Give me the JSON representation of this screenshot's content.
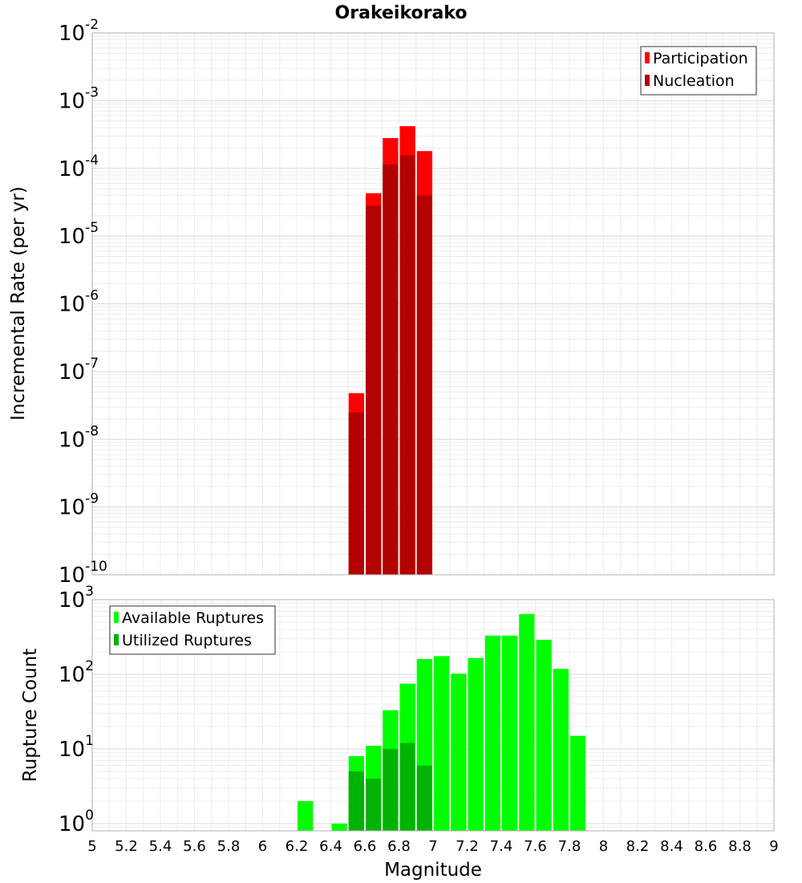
{
  "title": "Orakeikorako",
  "chart_data": [
    {
      "type": "bar",
      "ylabel": "Incremental Rate (per yr)",
      "yscale": "log",
      "ylim": [
        1e-10,
        0.01
      ],
      "xlim": [
        5,
        9
      ],
      "bin_width": 0.1,
      "grid": true,
      "legend_position": "top-right",
      "x": [
        6.55,
        6.65,
        6.75,
        6.85,
        6.95
      ],
      "series": [
        {
          "name": "Participation",
          "color": "#ff0000",
          "values": [
            4.8e-08,
            4.3e-05,
            0.00028,
            0.00042,
            0.00018
          ]
        },
        {
          "name": "Nucleation",
          "color": "#b30000",
          "values": [
            2.5e-08,
            2.8e-05,
            0.000115,
            0.000155,
            4e-05
          ]
        }
      ]
    },
    {
      "type": "bar",
      "xlabel": "Magnitude",
      "ylabel": "Rupture Count",
      "yscale": "log",
      "ylim": [
        0.8,
        1000
      ],
      "xlim": [
        5,
        9
      ],
      "bin_width": 0.1,
      "grid": true,
      "legend_position": "top-left",
      "xticks": [
        "5",
        "5.2",
        "5.4",
        "5.6",
        "5.8",
        "6",
        "6.2",
        "6.4",
        "6.6",
        "6.8",
        "7",
        "7.2",
        "7.4",
        "7.6",
        "7.8",
        "8",
        "8.2",
        "8.4",
        "8.6",
        "8.8",
        "9"
      ],
      "series": [
        {
          "name": "Available Ruptures",
          "color": "#00ff00",
          "x": [
            6.25,
            6.45,
            6.55,
            6.65,
            6.75,
            6.85,
            6.95,
            7.05,
            7.15,
            7.25,
            7.35,
            7.45,
            7.55,
            7.65,
            7.75,
            7.85
          ],
          "values": [
            2,
            1,
            8,
            11,
            33,
            75,
            160,
            175,
            102,
            165,
            330,
            330,
            640,
            290,
            118,
            15
          ]
        },
        {
          "name": "Utilized Ruptures",
          "color": "#00b300",
          "x": [
            6.55,
            6.65,
            6.75,
            6.85,
            6.95
          ],
          "values": [
            5,
            4,
            10,
            12,
            6
          ]
        }
      ]
    }
  ]
}
